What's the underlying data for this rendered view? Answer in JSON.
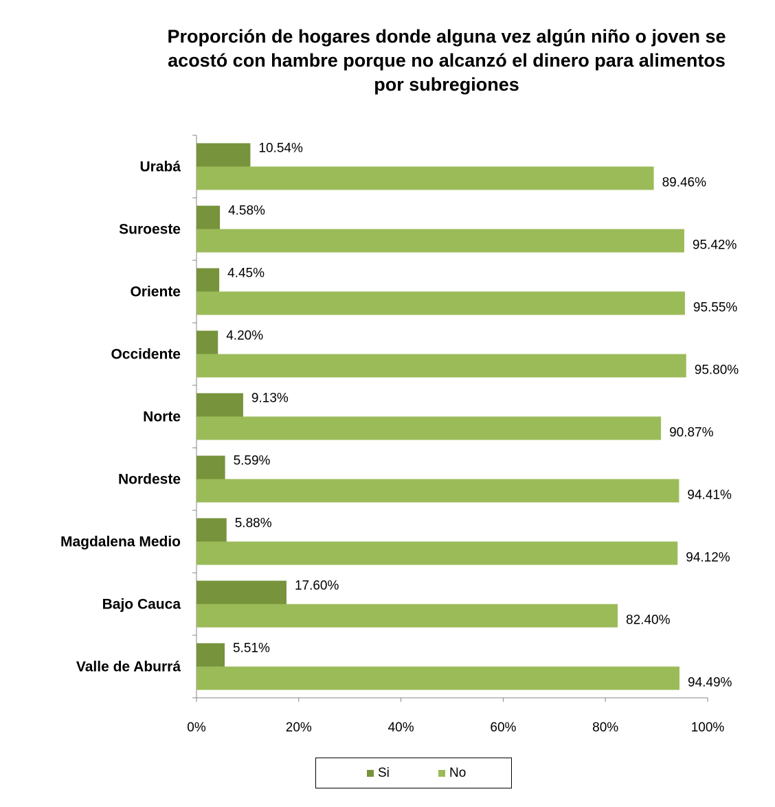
{
  "chart_data": {
    "type": "bar",
    "orientation": "horizontal",
    "title_lines": [
      "Proporción de hogares donde alguna vez algún niño o joven se",
      "acostó con hambre porque no alcanzó el dinero para alimentos",
      "por subregiones"
    ],
    "categories": [
      "Urabá",
      "Suroeste",
      "Oriente",
      "Occidente",
      "Norte",
      "Nordeste",
      "Magdalena Medio",
      "Bajo Cauca",
      "Valle de Aburrá"
    ],
    "series": [
      {
        "name": "Si",
        "color": "#77933C",
        "values": [
          10.54,
          4.58,
          4.45,
          4.2,
          9.13,
          5.59,
          5.88,
          17.6,
          5.51
        ],
        "labels": [
          "10.54%",
          "4.58%",
          "4.45%",
          "4.20%",
          "9.13%",
          "5.59%",
          "5.88%",
          "17.60%",
          "5.51%"
        ]
      },
      {
        "name": "No",
        "color": "#9BBB59",
        "values": [
          89.46,
          95.42,
          95.55,
          95.8,
          90.87,
          94.41,
          94.12,
          82.4,
          94.49
        ],
        "labels": [
          "89.46%",
          "95.42%",
          "95.55%",
          "95.80%",
          "90.87%",
          "94.41%",
          "94.12%",
          "82.40%",
          "94.49%"
        ]
      }
    ],
    "xlim": [
      0,
      100
    ],
    "xticks": [
      "0%",
      "20%",
      "40%",
      "60%",
      "80%",
      "100%"
    ],
    "grid": false,
    "legend_position": "bottom"
  }
}
